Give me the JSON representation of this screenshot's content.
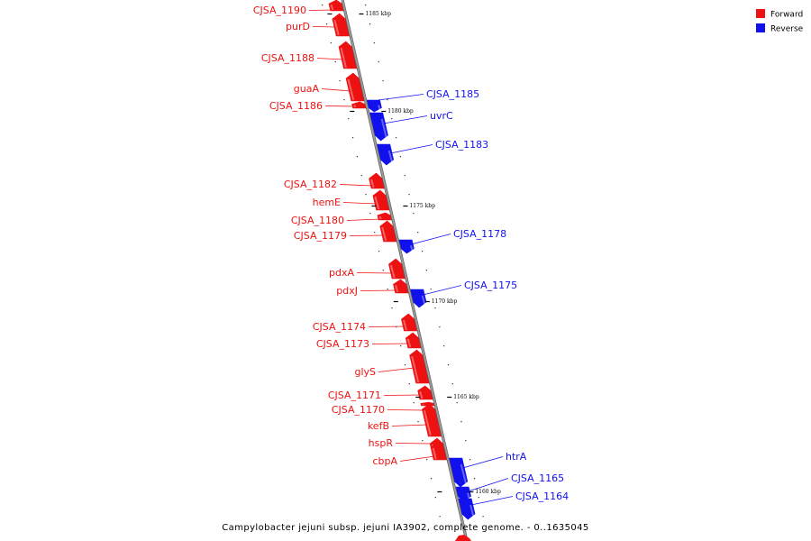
{
  "caption": "Campylobacter jejuni subsp. jejuni IA3902, complete genome. - 0..1635045",
  "colors": {
    "forward": "#ee1111",
    "reverse": "#1111ee",
    "backbone": "#888888"
  },
  "legend": [
    {
      "label": "Forward",
      "color": "#ee1111"
    },
    {
      "label": "Reverse",
      "color": "#1111ee"
    }
  ],
  "ticks": [
    {
      "label": "1185 kbp"
    },
    {
      "label": "1180 kbp"
    },
    {
      "label": "1175 kbp"
    },
    {
      "label": "1170 kbp"
    },
    {
      "label": "1165 kbp"
    },
    {
      "label": "1160 kbp"
    }
  ],
  "genes": [
    {
      "name": "CJSA_1190",
      "strand": "forward"
    },
    {
      "name": "purD",
      "strand": "forward"
    },
    {
      "name": "CJSA_1188",
      "strand": "forward"
    },
    {
      "name": "guaA",
      "strand": "forward"
    },
    {
      "name": "CJSA_1186",
      "strand": "forward"
    },
    {
      "name": "CJSA_1185",
      "strand": "reverse"
    },
    {
      "name": "uvrC",
      "strand": "reverse"
    },
    {
      "name": "CJSA_1183",
      "strand": "reverse"
    },
    {
      "name": "CJSA_1182",
      "strand": "forward"
    },
    {
      "name": "hemE",
      "strand": "forward"
    },
    {
      "name": "CJSA_1180",
      "strand": "forward"
    },
    {
      "name": "CJSA_1179",
      "strand": "forward"
    },
    {
      "name": "CJSA_1178",
      "strand": "reverse"
    },
    {
      "name": "pdxA",
      "strand": "forward"
    },
    {
      "name": "pdxJ",
      "strand": "forward"
    },
    {
      "name": "CJSA_1175",
      "strand": "reverse"
    },
    {
      "name": "CJSA_1174",
      "strand": "forward"
    },
    {
      "name": "CJSA_1173",
      "strand": "forward"
    },
    {
      "name": "glyS",
      "strand": "forward"
    },
    {
      "name": "CJSA_1171",
      "strand": "forward"
    },
    {
      "name": "CJSA_1170",
      "strand": "forward"
    },
    {
      "name": "kefB",
      "strand": "forward"
    },
    {
      "name": "hspR",
      "strand": "forward"
    },
    {
      "name": "cbpA",
      "strand": "forward"
    },
    {
      "name": "htrA",
      "strand": "reverse"
    },
    {
      "name": "CJSA_1165",
      "strand": "reverse"
    },
    {
      "name": "CJSA_1164",
      "strand": "reverse"
    }
  ]
}
